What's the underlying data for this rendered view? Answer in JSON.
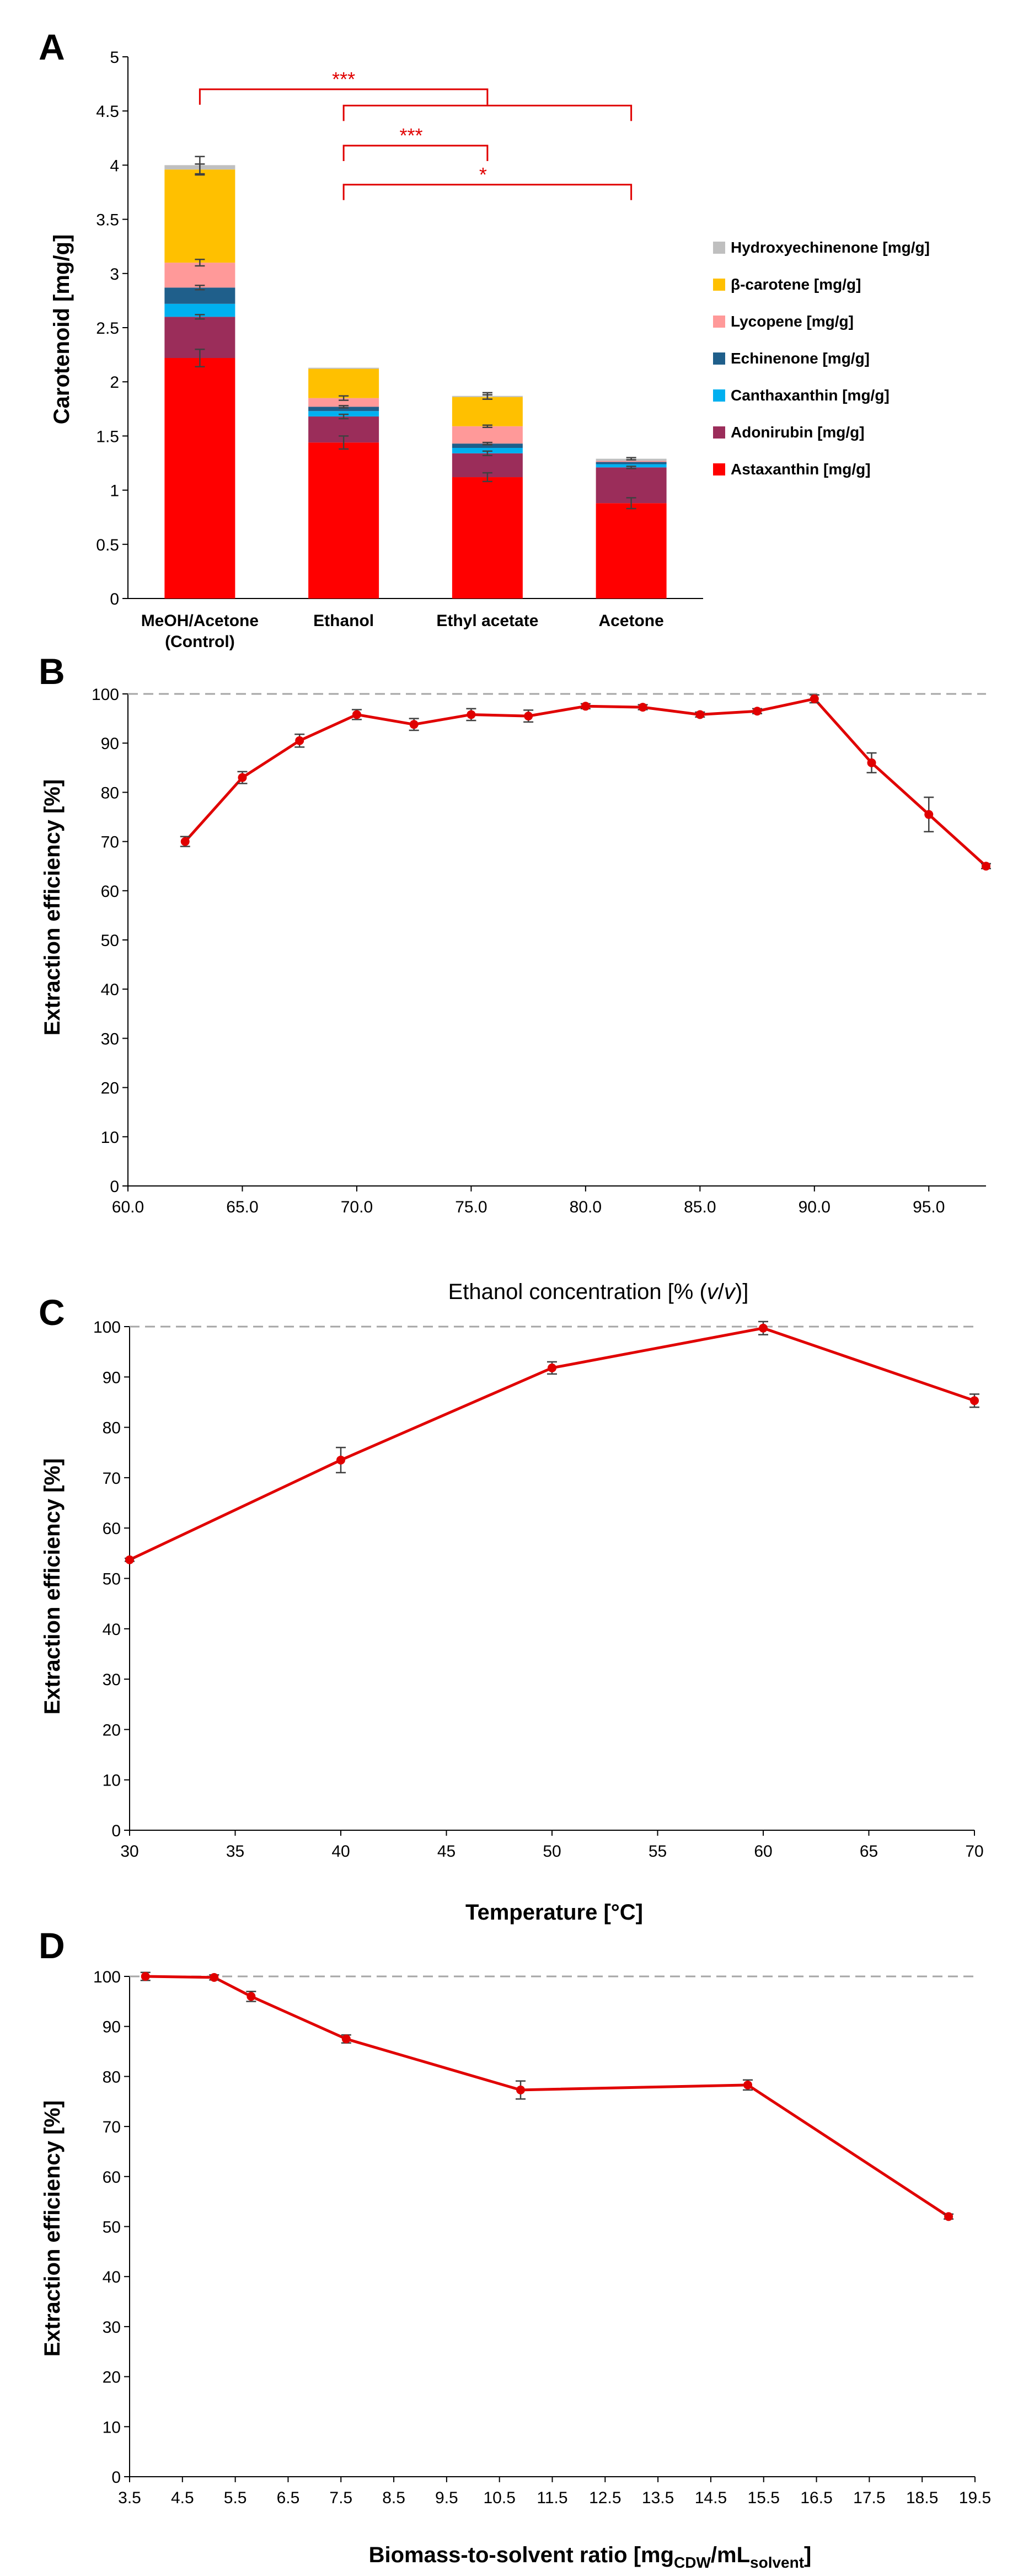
{
  "colors": {
    "astaxanthin": "#ff0000",
    "adonirubin": "#9b2d5a",
    "canthaxanthin": "#00b0f0",
    "echinenone": "#1f5f8b",
    "lycopene": "#ff9999",
    "beta_carotene": "#ffc000",
    "hydroxyechinenone": "#bfbfbf",
    "line": "#e00000",
    "reference": "#a6a6a6",
    "error": "#404040"
  },
  "chart_data": [
    {
      "panel": "A",
      "type": "bar",
      "stacked": true,
      "ylabel": "Carotenoid [mg/g]",
      "ylim": [
        0,
        5
      ],
      "yticks": [
        "0",
        "0.5",
        "1",
        "1.5",
        "2",
        "2.5",
        "3",
        "3.5",
        "4",
        "4.5",
        "5"
      ],
      "categories": [
        [
          "MeOH/Acetone",
          "(Control)"
        ],
        [
          "Ethanol"
        ],
        [
          "Ethyl acetate"
        ],
        [
          "Acetone"
        ]
      ],
      "series": [
        {
          "name": "Astaxanthin [mg/g]",
          "values": [
            2.22,
            1.44,
            1.12,
            0.88
          ]
        },
        {
          "name": "Adonirubin [mg/g]",
          "values": [
            0.38,
            0.24,
            0.22,
            0.33
          ]
        },
        {
          "name": "Canthaxanthin [mg/g]",
          "values": [
            0.12,
            0.05,
            0.05,
            0.03
          ]
        },
        {
          "name": "Echinenone [mg/g]",
          "values": [
            0.15,
            0.04,
            0.04,
            0.02
          ]
        },
        {
          "name": "Lycopene [mg/g]",
          "values": [
            0.23,
            0.08,
            0.16,
            0.01
          ]
        },
        {
          "name": "β-carotene [mg/g]",
          "values": [
            0.86,
            0.27,
            0.27,
            0.0
          ]
        },
        {
          "name": "Hydroxyechinenone [mg/g]",
          "values": [
            0.04,
            0.01,
            0.01,
            0.02
          ]
        }
      ],
      "error_bars": [
        {
          "series": "Astaxanthin [mg/g]",
          "values": [
            0.08,
            0.06,
            0.04,
            0.05
          ]
        },
        {
          "series": "Adonirubin [mg/g]",
          "values": [
            0.02,
            0.02,
            0.02,
            0.01
          ]
        },
        {
          "series": "Echinenone [mg/g]",
          "values": [
            0.02,
            0.01,
            0.01,
            0.0
          ]
        },
        {
          "series": "Lycopene [mg/g]",
          "values": [
            0.03,
            0.02,
            0.01,
            0.0
          ]
        },
        {
          "series": "β-carotene [mg/g]",
          "values": [
            0.05,
            0.0,
            0.02,
            0.0
          ]
        },
        {
          "series": "Hydroxyechinenone [mg/g]",
          "values": [
            0.08,
            0.0,
            0.03,
            0.01
          ]
        }
      ],
      "legend_order": [
        "Hydroxyechinenone [mg/g]",
        "β-carotene [mg/g]",
        "Lycopene [mg/g]",
        "Echinenone [mg/g]",
        "Canthaxanthin [mg/g]",
        "Adonirubin [mg/g]",
        "Astaxanthin [mg/g]"
      ],
      "legend_position": "right",
      "significance": [
        {
          "from": 0,
          "to": 2,
          "level": 4.7,
          "label": "***"
        },
        {
          "from": 1,
          "to": 3,
          "level": 4.55,
          "label": ""
        },
        {
          "from": 1,
          "to": 2,
          "level": 4.18,
          "label": "***"
        },
        {
          "from": 1,
          "to": 3,
          "level": 3.82,
          "label": "*"
        }
      ]
    },
    {
      "panel": "B",
      "type": "line",
      "xlabel": "Ethanol concentration [% (v/v)]",
      "ylabel": "Extraction efficiency [%]",
      "xlim": [
        60,
        97.5
      ],
      "ylim": [
        0,
        100
      ],
      "xticks": [
        "60.0",
        "65.0",
        "70.0",
        "75.0",
        "80.0",
        "85.0",
        "90.0",
        "95.0"
      ],
      "yticks": [
        "0",
        "10",
        "20",
        "30",
        "40",
        "50",
        "60",
        "70",
        "80",
        "90",
        "100"
      ],
      "reference_line": 100,
      "x": [
        62.5,
        65,
        67.5,
        70,
        72.5,
        75,
        77.5,
        80,
        82.5,
        85,
        87.5,
        90,
        92.5,
        95,
        97.5
      ],
      "y": [
        70.0,
        83.0,
        90.5,
        95.8,
        93.8,
        95.8,
        95.5,
        97.5,
        97.3,
        95.8,
        96.5,
        99.0,
        86.0,
        75.5,
        65.0
      ],
      "yerr": [
        1.0,
        1.2,
        1.3,
        1.0,
        1.2,
        1.2,
        1.2,
        0.5,
        0.5,
        0.5,
        0.5,
        0.8,
        2.0,
        3.5,
        0.5
      ]
    },
    {
      "panel": "C",
      "type": "line",
      "xlabel": "Temperature [°C]",
      "ylabel": "Extraction efficiency [%]",
      "xlim": [
        30,
        70
      ],
      "ylim": [
        0,
        100
      ],
      "xticks": [
        "30",
        "35",
        "40",
        "45",
        "50",
        "55",
        "60",
        "65",
        "70"
      ],
      "yticks": [
        "0",
        "10",
        "20",
        "30",
        "40",
        "50",
        "60",
        "70",
        "80",
        "90",
        "100"
      ],
      "reference_line": 100,
      "x": [
        30,
        40,
        50,
        60,
        70
      ],
      "y": [
        53.7,
        73.5,
        91.8,
        99.7,
        85.3
      ],
      "yerr": [
        0.3,
        2.5,
        1.2,
        1.3,
        1.3
      ]
    },
    {
      "panel": "D",
      "type": "line",
      "xlabel": "Biomass-to-solvent ratio [mg",
      "xlabel_sub1": "CDW",
      "xlabel_mid": "/mL",
      "xlabel_sub2": "solvent",
      "xlabel_end": "]",
      "ylabel": "Extraction efficiency [%]",
      "xlim": [
        3.5,
        19.5
      ],
      "ylim": [
        0,
        100
      ],
      "xticks": [
        "3.5",
        "4.5",
        "5.5",
        "6.5",
        "7.5",
        "8.5",
        "9.5",
        "10.5",
        "11.5",
        "12.5",
        "13.5",
        "14.5",
        "15.5",
        "16.5",
        "17.5",
        "18.5",
        "19.5"
      ],
      "yticks": [
        "0",
        "10",
        "20",
        "30",
        "40",
        "50",
        "60",
        "70",
        "80",
        "90",
        "100"
      ],
      "reference_line": 100,
      "x": [
        3.8,
        5.1,
        5.8,
        7.6,
        10.9,
        15.2,
        19.0
      ],
      "y": [
        100.0,
        99.8,
        96.0,
        87.5,
        77.3,
        78.3,
        52.0
      ],
      "yerr": [
        0.8,
        0.5,
        1.0,
        0.8,
        1.8,
        1.0,
        0.5
      ]
    }
  ]
}
